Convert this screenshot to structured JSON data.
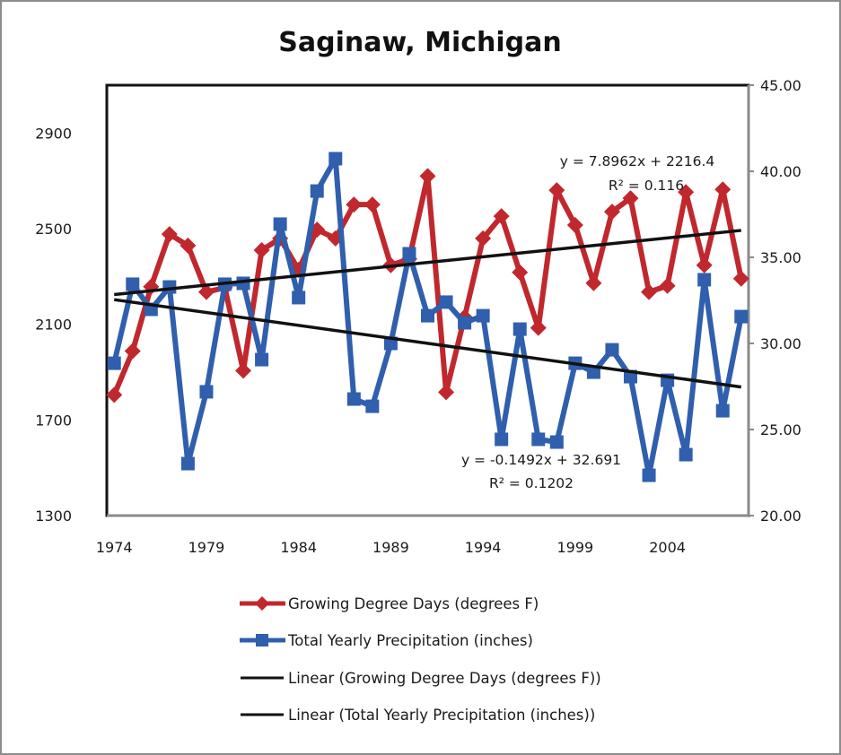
{
  "chart_data": {
    "type": "line",
    "title": "Saginaw, Michigan",
    "xlabel": "",
    "ylabel": "",
    "y2label": "",
    "x": [
      1974,
      1975,
      1976,
      1977,
      1978,
      1979,
      1980,
      1981,
      1982,
      1983,
      1984,
      1985,
      1986,
      1987,
      1988,
      1989,
      1990,
      1991,
      1992,
      1993,
      1994,
      1995,
      1996,
      1997,
      1998,
      1999,
      2000,
      2001,
      2002,
      2003,
      2004,
      2005,
      2006,
      2007,
      2008
    ],
    "x_tick_labels": [
      "1974",
      "1979",
      "1984",
      "1989",
      "1994",
      "1999",
      "2004"
    ],
    "x_tick_values": [
      1974,
      1979,
      1984,
      1989,
      1994,
      1999,
      2004
    ],
    "xlim": [
      1973.6,
      2008.4
    ],
    "y_left": {
      "ylim": [
        1300,
        3100
      ],
      "tick_values": [
        1300,
        1700,
        2100,
        2500,
        2900
      ],
      "tick_labels": [
        "1300",
        "1700",
        "2100",
        "2500",
        "2900"
      ]
    },
    "y_right": {
      "ylim": [
        20,
        45
      ],
      "tick_values": [
        20,
        25,
        30,
        35,
        40,
        45
      ],
      "tick_labels": [
        "20.00",
        "25.00",
        "30.00",
        "35.00",
        "40.00",
        "45.00"
      ]
    },
    "grid": false,
    "legend_position": "bottom",
    "series": [
      {
        "name": "Growing Degree Days (degrees F)",
        "axis": "left",
        "marker": "diamond",
        "color": "#c0282d",
        "values": [
          1805,
          1988,
          2257,
          2477,
          2429,
          2235,
          2253,
          1906,
          2410,
          2459,
          2328,
          2496,
          2459,
          2601,
          2601,
          2347,
          2373,
          2720,
          1816,
          2130,
          2459,
          2552,
          2317,
          2085,
          2661,
          2515,
          2272,
          2571,
          2627,
          2235,
          2261,
          2653,
          2347,
          2664,
          2291
        ]
      },
      {
        "name": "Total Yearly Precipitation (inches)",
        "axis": "right",
        "marker": "square",
        "color": "#2f5fad",
        "values": [
          28.85,
          33.44,
          31.98,
          33.28,
          23.02,
          27.19,
          33.44,
          33.49,
          29.06,
          36.93,
          32.66,
          38.85,
          40.73,
          26.77,
          26.35,
          30.0,
          35.21,
          31.61,
          32.4,
          31.2,
          31.61,
          24.43,
          30.83,
          24.43,
          24.27,
          28.85,
          28.33,
          29.63,
          28.07,
          22.34,
          27.86,
          23.54,
          33.7,
          26.09,
          31.56
        ]
      }
    ],
    "trendlines": [
      {
        "name": "Linear (Growing Degree Days (degrees F))",
        "axis": "left",
        "color": "#111111",
        "slope": 7.8962,
        "intercept": 2216.4,
        "equation_label": "y = 7.8962x + 2216.4",
        "r2_label": "R² = 0.116"
      },
      {
        "name": "Linear (Total Yearly Precipitation (inches))",
        "axis": "right",
        "color": "#111111",
        "slope": -0.1492,
        "intercept": 32.691,
        "equation_label": "y = -0.1492x + 32.691",
        "r2_label": "R² = 0.1202"
      }
    ],
    "legend": [
      "Growing Degree Days (degrees F)",
      "Total Yearly Precipitation (inches)",
      "Linear (Growing Degree Days (degrees F))",
      "Linear (Total Yearly Precipitation (inches))"
    ]
  }
}
